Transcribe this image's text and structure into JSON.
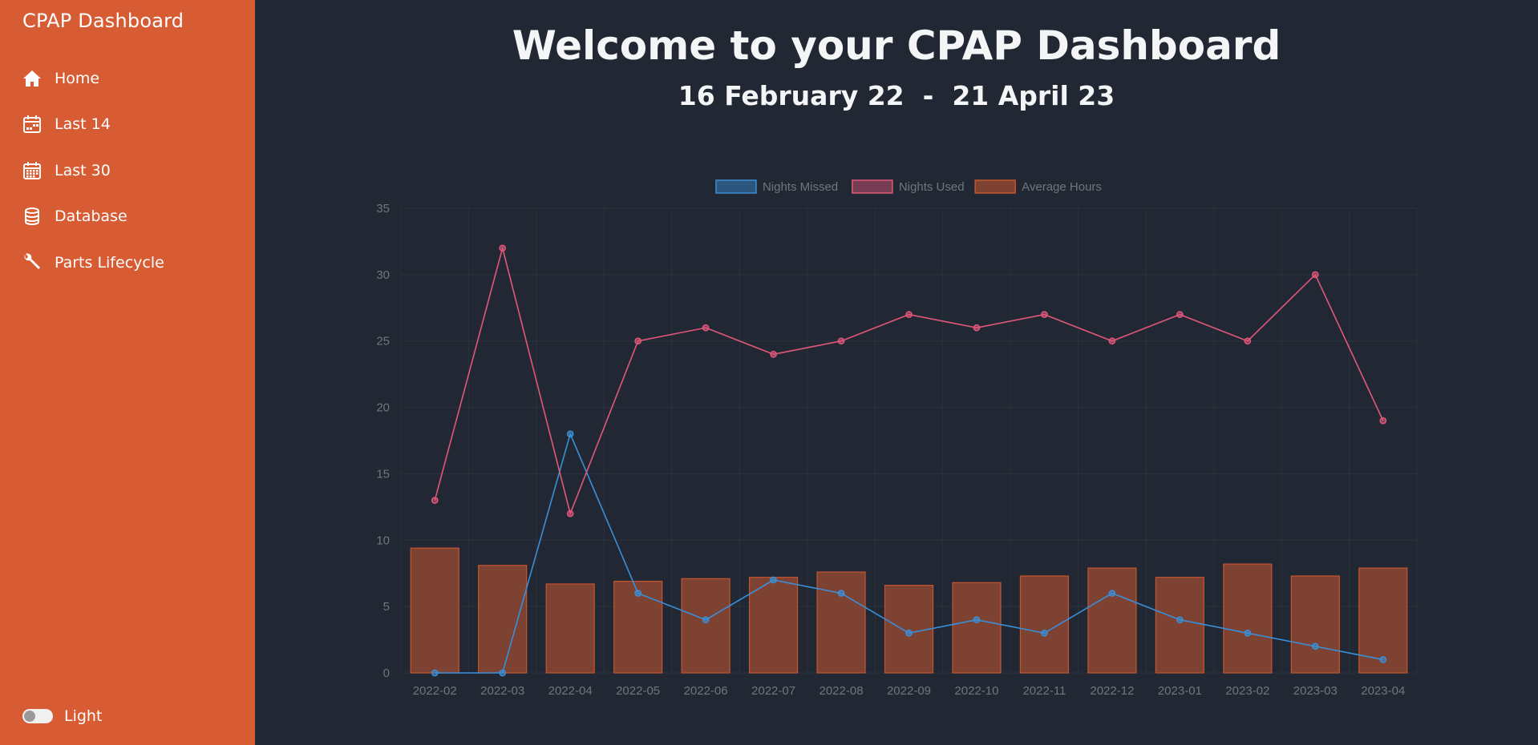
{
  "sidebar": {
    "title": "CPAP Dashboard",
    "items": [
      {
        "label": "Home",
        "icon": "home-icon"
      },
      {
        "label": "Last 14",
        "icon": "calendar-week-icon"
      },
      {
        "label": "Last 30",
        "icon": "calendar-month-icon"
      },
      {
        "label": "Database",
        "icon": "database-icon"
      },
      {
        "label": "Parts Lifecycle",
        "icon": "wrench-icon"
      }
    ],
    "theme_label": "Light",
    "accent_color": "#d75b33"
  },
  "header": {
    "title": "Welcome to your CPAP Dashboard",
    "start_date": "16 February 22",
    "separator": "-",
    "end_date": "21 April 23"
  },
  "chart_data": {
    "type": "bar",
    "categories": [
      "2022-02",
      "2022-03",
      "2022-04",
      "2022-05",
      "2022-06",
      "2022-07",
      "2022-08",
      "2022-09",
      "2022-10",
      "2022-11",
      "2022-12",
      "2023-01",
      "2023-02",
      "2023-03",
      "2023-04"
    ],
    "series": [
      {
        "name": "Nights Missed",
        "type": "line",
        "color": "#3a8fd9",
        "values": [
          0,
          0,
          18,
          6,
          4,
          7,
          6,
          3,
          4,
          3,
          6,
          4,
          3,
          2,
          1
        ]
      },
      {
        "name": "Nights Used",
        "type": "line",
        "color": "#e0577a",
        "values": [
          13,
          32,
          12,
          25,
          26,
          24,
          25,
          27,
          26,
          27,
          25,
          27,
          25,
          30,
          19
        ]
      },
      {
        "name": "Average Hours",
        "type": "bar",
        "color": "#7d4232",
        "values": [
          9.4,
          8.1,
          6.7,
          6.9,
          7.1,
          7.2,
          7.6,
          6.6,
          6.8,
          7.3,
          7.9,
          7.2,
          8.2,
          7.3,
          7.9
        ]
      }
    ],
    "ylim": [
      0,
      35
    ],
    "yticks": [
      0,
      5,
      10,
      15,
      20,
      25,
      30,
      35
    ],
    "grid": true,
    "legend": "top-center"
  }
}
